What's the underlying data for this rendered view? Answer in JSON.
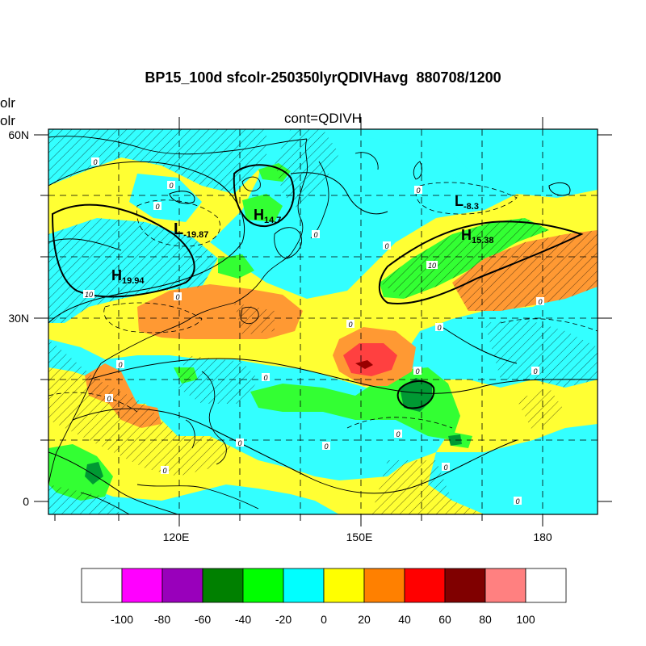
{
  "title": "BP15_100d sfcolr-250350lyrQDIVHavg  880708/1200",
  "subtitle": "cont=QDIVH",
  "left_labels": [
    "olr",
    "olr"
  ],
  "lat_labels": [
    "60N",
    "30N",
    "0"
  ],
  "lon_labels": [
    "120E",
    "150E",
    "180"
  ],
  "pressure_labels": [
    {
      "letter": "L",
      "value": "-19.87"
    },
    {
      "letter": "H",
      "value": "14.7"
    },
    {
      "letter": "L",
      "value": "-8.3"
    },
    {
      "letter": "H",
      "value": "15.38"
    },
    {
      "letter": "H",
      "value": "19.94"
    }
  ],
  "contour_labels": [
    "0",
    "0",
    "0",
    "0",
    "0",
    "0",
    "10",
    "10",
    "0",
    "0",
    "0",
    "0",
    "0",
    "0",
    "0",
    "0",
    "0",
    "0",
    "0",
    "0"
  ],
  "colorbar": {
    "colors": [
      "#ffffff",
      "#ff00ff",
      "#9900bb",
      "#008000",
      "#00ff00",
      "#00ffff",
      "#ffff00",
      "#ff8000",
      "#ff0000",
      "#800000",
      "#ff8080",
      "#ffffff"
    ],
    "labels": [
      "-100",
      "-80",
      "-60",
      "-40",
      "-20",
      "0",
      "20",
      "40",
      "60",
      "80",
      "100"
    ]
  }
}
